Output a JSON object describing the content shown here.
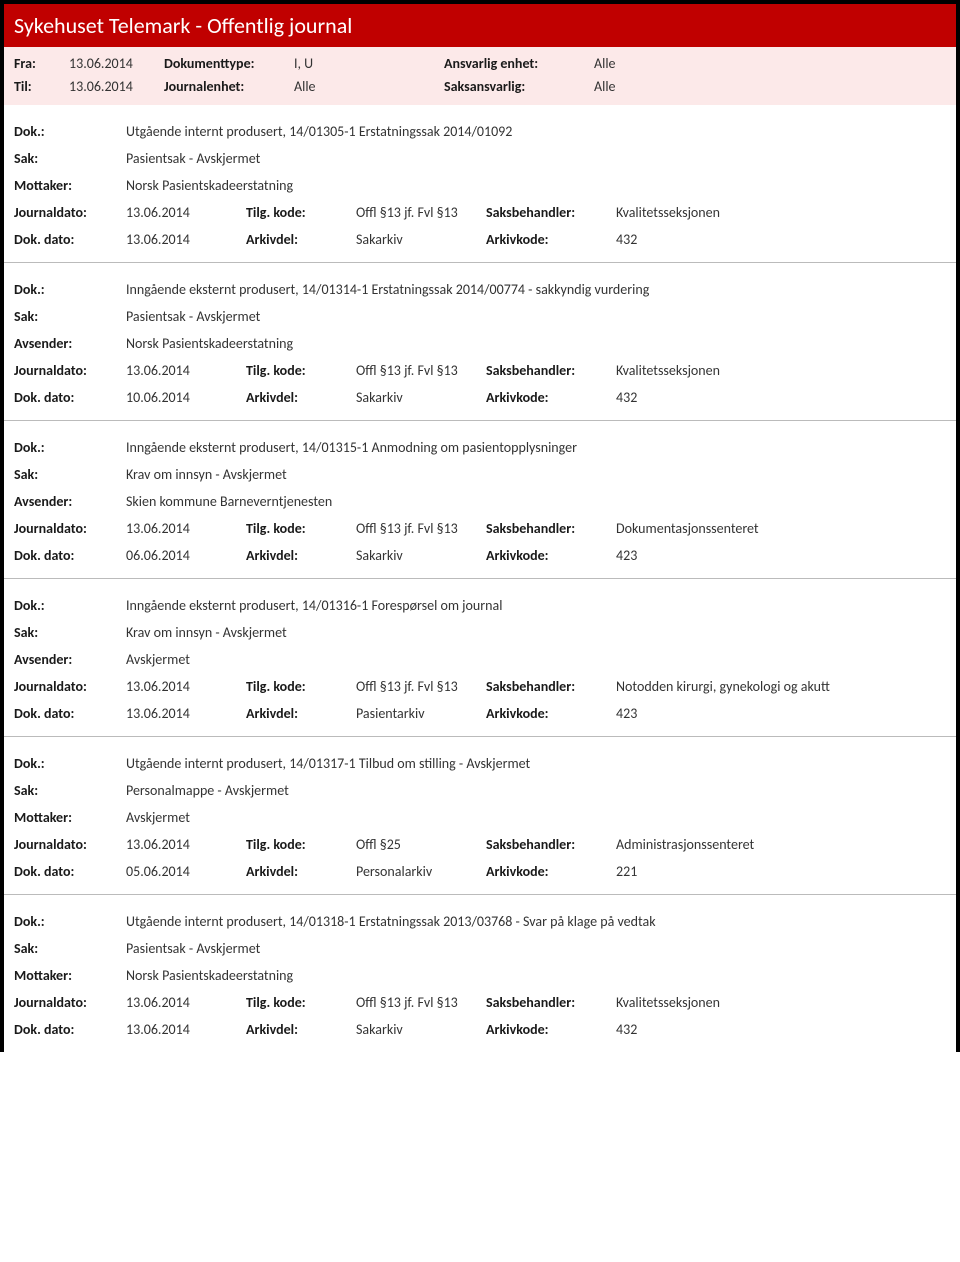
{
  "colors": {
    "title_bg": "#c00000",
    "title_fg": "#ffffff",
    "header_band_bg": "#fce9e9",
    "border": "#000000",
    "divider": "#bbbbbb",
    "label": "#1a1a1a",
    "value": "#333333"
  },
  "typography": {
    "title_fontsize_pt": 17,
    "body_fontsize_pt": 10.5,
    "font_family": "Segoe UI / Calibri"
  },
  "title": "Sykehuset Telemark - Offentlig journal",
  "header": {
    "fra_label": "Fra:",
    "fra_value": "13.06.2014",
    "dokumenttype_label": "Dokumenttype:",
    "dokumenttype_value": "I, U",
    "ansvarlig_enhet_label": "Ansvarlig enhet:",
    "ansvarlig_enhet_value": "Alle",
    "til_label": "Til:",
    "til_value": "13.06.2014",
    "journalenhet_label": "Journalenhet:",
    "journalenhet_value": "Alle",
    "saksansvarlig_label": "Saksansvarlig:",
    "saksansvarlig_value": "Alle"
  },
  "labels": {
    "dok": "Dok.:",
    "sak": "Sak:",
    "mottaker": "Mottaker:",
    "avsender": "Avsender:",
    "journaldato": "Journaldato:",
    "tilgkode": "Tilg. kode:",
    "saksbehandler": "Saksbehandler:",
    "dokdato": "Dok. dato:",
    "arkivdel": "Arkivdel:",
    "arkivkode": "Arkivkode:"
  },
  "entries": [
    {
      "dok": "Utgående internt produsert, 14/01305-1 Erstatningssak 2014/01092",
      "sak": "Pasientsak - Avskjermet",
      "party_label": "Mottaker:",
      "party_value": "Norsk Pasientskadeerstatning",
      "journaldato": "13.06.2014",
      "tilgkode": "Offl §13 jf. Fvl §13",
      "saksbehandler": "Kvalitetsseksjonen",
      "dokdato": "13.06.2014",
      "arkivdel": "Sakarkiv",
      "arkivkode": "432"
    },
    {
      "dok": "Inngående eksternt produsert, 14/01314-1 Erstatningssak 2014/00774 - sakkyndig vurdering",
      "sak": "Pasientsak - Avskjermet",
      "party_label": "Avsender:",
      "party_value": "Norsk Pasientskadeerstatning",
      "journaldato": "13.06.2014",
      "tilgkode": "Offl §13 jf. Fvl §13",
      "saksbehandler": "Kvalitetsseksjonen",
      "dokdato": "10.06.2014",
      "arkivdel": "Sakarkiv",
      "arkivkode": "432"
    },
    {
      "dok": "Inngående eksternt produsert, 14/01315-1 Anmodning om pasientopplysninger",
      "sak": "Krav om innsyn - Avskjermet",
      "party_label": "Avsender:",
      "party_value": "Skien kommune Barneverntjenesten",
      "journaldato": "13.06.2014",
      "tilgkode": "Offl §13 jf. Fvl §13",
      "saksbehandler": "Dokumentasjonssenteret",
      "dokdato": "06.06.2014",
      "arkivdel": "Sakarkiv",
      "arkivkode": "423"
    },
    {
      "dok": "Inngående eksternt produsert, 14/01316-1 Forespørsel om journal",
      "sak": "Krav om innsyn - Avskjermet",
      "party_label": "Avsender:",
      "party_value": "Avskjermet",
      "journaldato": "13.06.2014",
      "tilgkode": "Offl §13 jf. Fvl §13",
      "saksbehandler": "Notodden kirurgi, gynekologi og akutt",
      "dokdato": "13.06.2014",
      "arkivdel": "Pasientarkiv",
      "arkivkode": "423"
    },
    {
      "dok": "Utgående internt produsert, 14/01317-1 Tilbud om stilling - Avskjermet",
      "sak": "Personalmappe - Avskjermet",
      "party_label": "Mottaker:",
      "party_value": "Avskjermet",
      "journaldato": "13.06.2014",
      "tilgkode": "Offl §25",
      "saksbehandler": "Administrasjonssenteret",
      "dokdato": "05.06.2014",
      "arkivdel": "Personalarkiv",
      "arkivkode": "221"
    },
    {
      "dok": "Utgående internt produsert, 14/01318-1 Erstatningssak 2013/03768 - Svar på klage på vedtak",
      "sak": "Pasientsak - Avskjermet",
      "party_label": "Mottaker:",
      "party_value": "Norsk Pasientskadeerstatning",
      "journaldato": "13.06.2014",
      "tilgkode": "Offl §13 jf. Fvl §13",
      "saksbehandler": "Kvalitetsseksjonen",
      "dokdato": "13.06.2014",
      "arkivdel": "Sakarkiv",
      "arkivkode": "432"
    }
  ]
}
